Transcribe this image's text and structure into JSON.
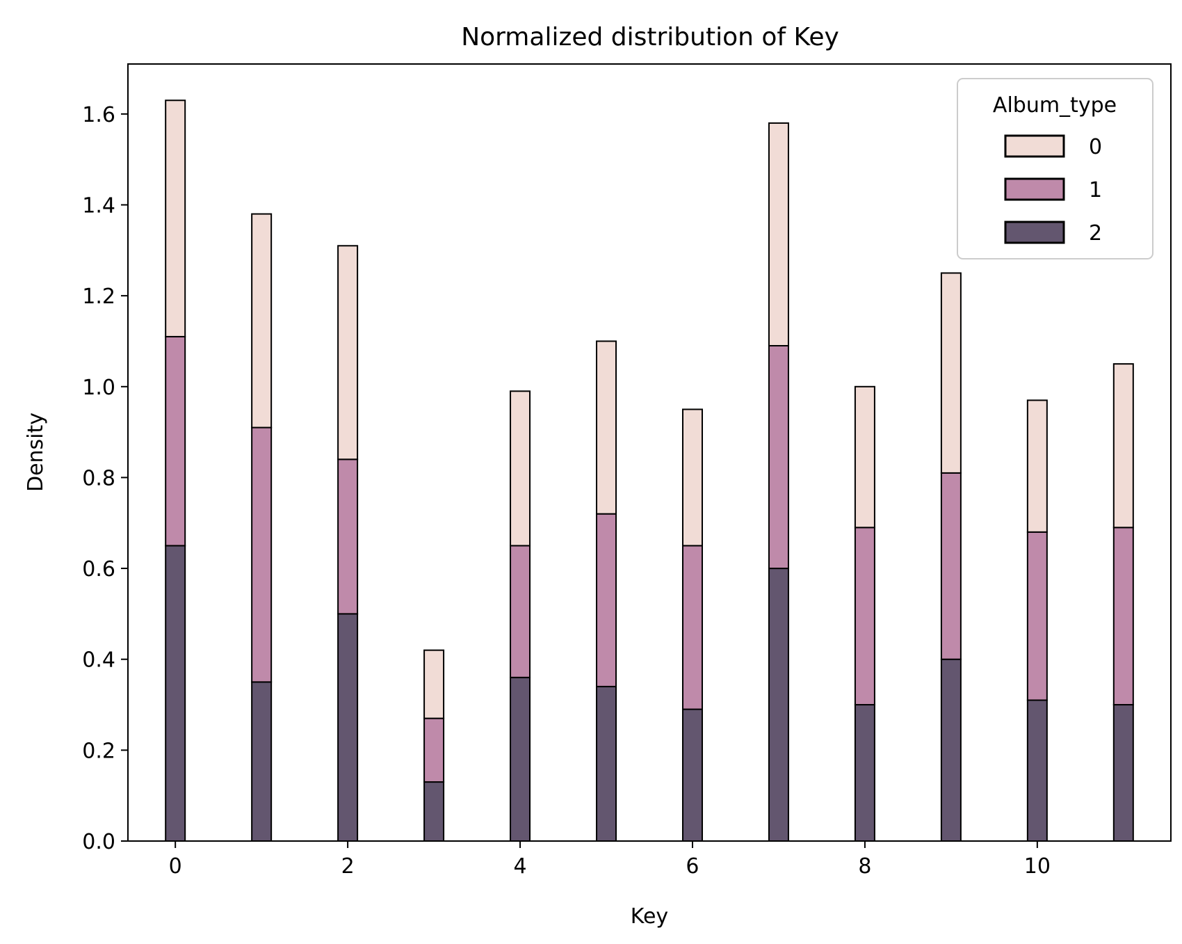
{
  "chart_data": {
    "type": "bar",
    "stacked": true,
    "title": "Normalized distribution of Key",
    "xlabel": "Key",
    "ylabel": "Density",
    "xlim": [
      -0.55,
      11.55
    ],
    "ylim": [
      0,
      1.71
    ],
    "x_ticks": [
      0,
      2,
      4,
      6,
      8,
      10
    ],
    "y_ticks": [
      0.0,
      0.2,
      0.4,
      0.6,
      0.8,
      1.0,
      1.2,
      1.4,
      1.6
    ],
    "y_tick_labels": [
      "0.0",
      "0.2",
      "0.4",
      "0.6",
      "0.8",
      "1.0",
      "1.2",
      "1.4",
      "1.6"
    ],
    "grid": false,
    "legend": {
      "title": "Album_type",
      "placement": "top-right"
    },
    "categories": [
      0,
      1,
      2,
      3,
      4,
      5,
      6,
      7,
      8,
      9,
      10,
      11
    ],
    "series": [
      {
        "name": "2",
        "color": "#63566f",
        "values": [
          0.65,
          0.35,
          0.5,
          0.13,
          0.36,
          0.34,
          0.29,
          0.6,
          0.3,
          0.4,
          0.31,
          0.3
        ]
      },
      {
        "name": "1",
        "color": "#bf8aaa",
        "values": [
          0.46,
          0.56,
          0.34,
          0.14,
          0.29,
          0.38,
          0.36,
          0.49,
          0.39,
          0.41,
          0.37,
          0.39
        ]
      },
      {
        "name": "0",
        "color": "#f1dcd6",
        "values": [
          0.52,
          0.47,
          0.47,
          0.15,
          0.34,
          0.38,
          0.3,
          0.49,
          0.31,
          0.44,
          0.29,
          0.36
        ]
      }
    ]
  }
}
